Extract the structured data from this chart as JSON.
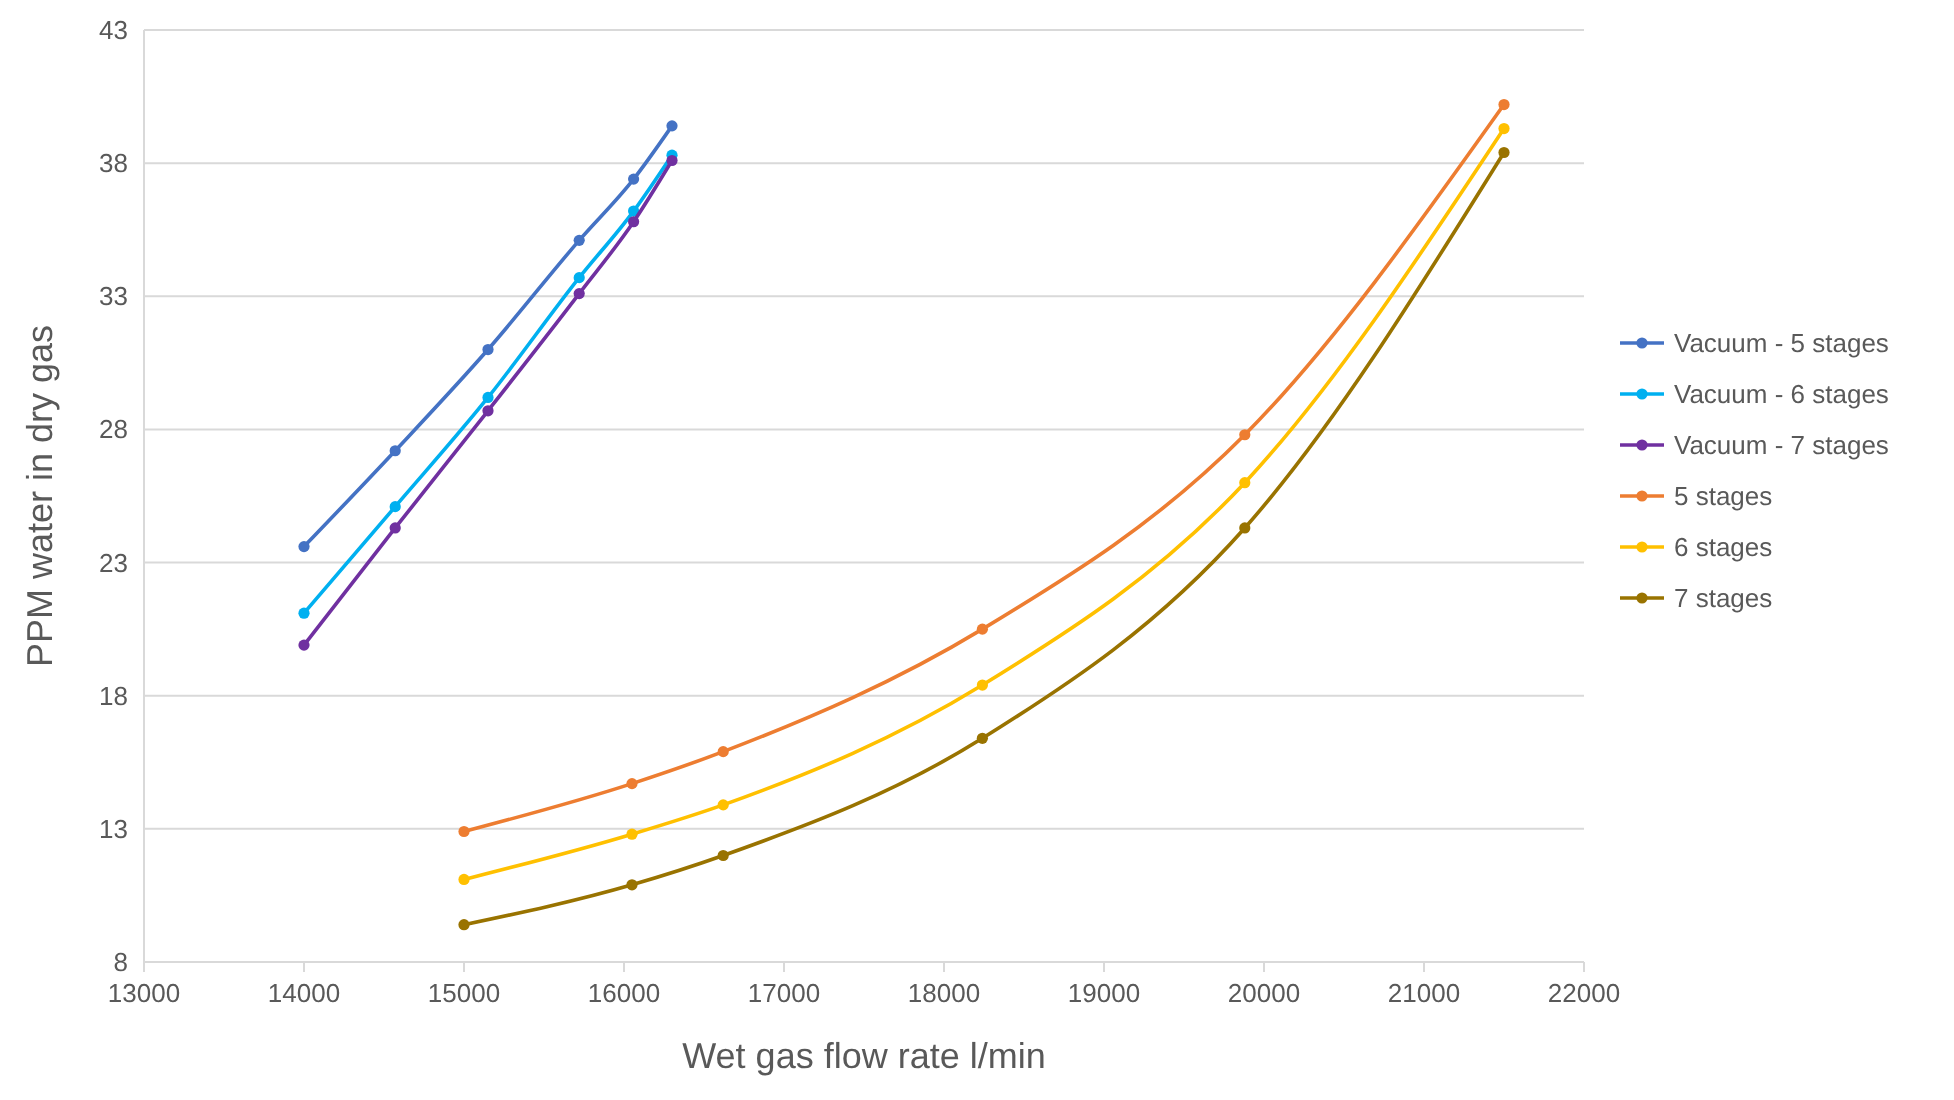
{
  "chart_data": {
    "type": "line",
    "xlabel": "Wet gas flow rate l/min",
    "ylabel": "PPM water in dry gas",
    "xlim": [
      13000,
      22000
    ],
    "xticks": [
      13000,
      14000,
      15000,
      16000,
      17000,
      18000,
      19000,
      20000,
      21000,
      22000
    ],
    "ylim": [
      8,
      43
    ],
    "yticks": [
      8,
      13,
      18,
      23,
      28,
      33,
      38,
      43
    ],
    "grid": "y",
    "legend": "right",
    "marker": "circle",
    "line_style": "solid",
    "series": [
      {
        "name": "Vacuum - 5 stages",
        "color": "#4472c4",
        "x": [
          14000,
          14570,
          15150,
          15720,
          16060,
          16300
        ],
        "values": [
          23.6,
          27.2,
          31.0,
          35.1,
          37.4,
          39.4
        ]
      },
      {
        "name": "Vacuum - 6 stages",
        "color": "#00b0f0",
        "x": [
          14000,
          14570,
          15150,
          15720,
          16060,
          16300
        ],
        "values": [
          21.1,
          25.1,
          29.2,
          33.7,
          36.2,
          38.3
        ]
      },
      {
        "name": "Vacuum - 7 stages",
        "color": "#7030a0",
        "x": [
          14000,
          14570,
          15150,
          15720,
          16060,
          16300
        ],
        "values": [
          19.9,
          24.3,
          28.7,
          33.1,
          35.8,
          38.1
        ]
      },
      {
        "name": "5 stages",
        "color": "#ed7d31",
        "x": [
          15000,
          16050,
          16620,
          18240,
          19880,
          21500
        ],
        "values": [
          12.9,
          14.7,
          15.9,
          20.5,
          27.8,
          40.2
        ]
      },
      {
        "name": "6 stages",
        "color": "#ffc000",
        "x": [
          15000,
          16050,
          16620,
          18240,
          19880,
          21500
        ],
        "values": [
          11.1,
          12.8,
          13.9,
          18.4,
          26.0,
          39.3
        ]
      },
      {
        "name": "7 stages",
        "color": "#997300",
        "x": [
          15000,
          16050,
          16620,
          18240,
          19880,
          21500
        ],
        "values": [
          9.4,
          10.9,
          12.0,
          16.4,
          24.3,
          38.4
        ]
      }
    ]
  }
}
